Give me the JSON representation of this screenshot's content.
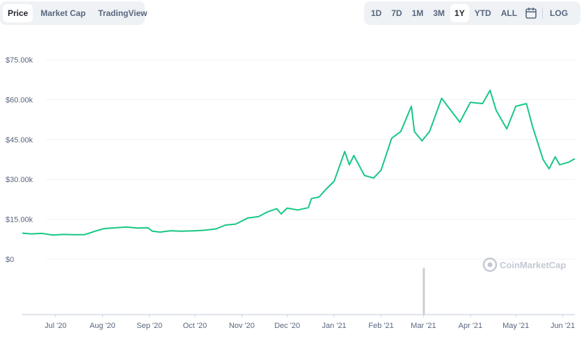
{
  "tabs": [
    {
      "label": "Price",
      "active": true
    },
    {
      "label": "Market Cap",
      "active": false
    },
    {
      "label": "TradingView",
      "active": false
    }
  ],
  "ranges": [
    {
      "label": "1D",
      "active": false
    },
    {
      "label": "7D",
      "active": false
    },
    {
      "label": "1M",
      "active": false
    },
    {
      "label": "3M",
      "active": false
    },
    {
      "label": "1Y",
      "active": true
    },
    {
      "label": "YTD",
      "active": false
    },
    {
      "label": "ALL",
      "active": false
    }
  ],
  "calendar_icon": "calendar-icon",
  "log_label": "LOG",
  "watermark": "CoinMarketCap",
  "colors": {
    "line": "#16c784",
    "grid": "#eff2f5",
    "volume": "#c9cdd4",
    "tab_bg": "#eff2f5"
  },
  "chart_data": {
    "type": "line",
    "ylim": [
      0,
      75000
    ],
    "yticks": [
      {
        "value": 0,
        "label": "$0"
      },
      {
        "value": 15000,
        "label": "$15.00k"
      },
      {
        "value": 30000,
        "label": "$30.00k"
      },
      {
        "value": 45000,
        "label": "$45.00k"
      },
      {
        "value": 60000,
        "label": "$60.00k"
      },
      {
        "value": 75000,
        "label": "$75.00k"
      }
    ],
    "xlim": [
      "2020-06-09",
      "2021-06-09"
    ],
    "xticks": [
      {
        "date": "2020-07-01",
        "label": "Jul '20"
      },
      {
        "date": "2020-08-01",
        "label": "Aug '20"
      },
      {
        "date": "2020-09-01",
        "label": "Sep '20"
      },
      {
        "date": "2020-10-01",
        "label": "Oct '20"
      },
      {
        "date": "2020-11-01",
        "label": "Nov '20"
      },
      {
        "date": "2020-12-01",
        "label": "Dec '20"
      },
      {
        "date": "2021-01-01",
        "label": "Jan '21"
      },
      {
        "date": "2021-02-01",
        "label": "Feb '21"
      },
      {
        "date": "2021-03-01",
        "label": "Mar '21"
      },
      {
        "date": "2021-04-01",
        "label": "Apr '21"
      },
      {
        "date": "2021-05-01",
        "label": "May '21"
      },
      {
        "date": "2021-06-01",
        "label": "Jun '21"
      }
    ],
    "series": [
      {
        "points": [
          [
            "2020-06-09",
            9800
          ],
          [
            "2020-06-15",
            9500
          ],
          [
            "2020-06-22",
            9700
          ],
          [
            "2020-06-29",
            9100
          ],
          [
            "2020-07-06",
            9300
          ],
          [
            "2020-07-13",
            9200
          ],
          [
            "2020-07-20",
            9200
          ],
          [
            "2020-07-27",
            10500
          ],
          [
            "2020-08-02",
            11500
          ],
          [
            "2020-08-10",
            11800
          ],
          [
            "2020-08-17",
            12100
          ],
          [
            "2020-08-24",
            11700
          ],
          [
            "2020-08-31",
            11800
          ],
          [
            "2020-09-03",
            10500
          ],
          [
            "2020-09-08",
            10200
          ],
          [
            "2020-09-15",
            10700
          ],
          [
            "2020-09-22",
            10500
          ],
          [
            "2020-10-01",
            10700
          ],
          [
            "2020-10-08",
            10900
          ],
          [
            "2020-10-15",
            11400
          ],
          [
            "2020-10-21",
            12800
          ],
          [
            "2020-10-28",
            13200
          ],
          [
            "2020-11-05",
            15500
          ],
          [
            "2020-11-12",
            16000
          ],
          [
            "2020-11-18",
            17800
          ],
          [
            "2020-11-24",
            19000
          ],
          [
            "2020-11-27",
            17000
          ],
          [
            "2020-12-01",
            19200
          ],
          [
            "2020-12-08",
            18500
          ],
          [
            "2020-12-15",
            19400
          ],
          [
            "2020-12-17",
            22800
          ],
          [
            "2020-12-22",
            23400
          ],
          [
            "2020-12-27",
            26500
          ],
          [
            "2021-01-01",
            29300
          ],
          [
            "2021-01-03",
            32500
          ],
          [
            "2021-01-08",
            40500
          ],
          [
            "2021-01-11",
            35500
          ],
          [
            "2021-01-14",
            39000
          ],
          [
            "2021-01-21",
            31500
          ],
          [
            "2021-01-27",
            30500
          ],
          [
            "2021-02-01",
            33500
          ],
          [
            "2021-02-08",
            45500
          ],
          [
            "2021-02-14",
            48000
          ],
          [
            "2021-02-21",
            57500
          ],
          [
            "2021-02-23",
            48000
          ],
          [
            "2021-02-28",
            44500
          ],
          [
            "2021-03-05",
            48000
          ],
          [
            "2021-03-13",
            60500
          ],
          [
            "2021-03-17",
            57500
          ],
          [
            "2021-03-25",
            51500
          ],
          [
            "2021-04-01",
            59000
          ],
          [
            "2021-04-09",
            58500
          ],
          [
            "2021-04-14",
            63500
          ],
          [
            "2021-04-18",
            56000
          ],
          [
            "2021-04-25",
            49000
          ],
          [
            "2021-05-01",
            57500
          ],
          [
            "2021-05-08",
            58500
          ],
          [
            "2021-05-12",
            50000
          ],
          [
            "2021-05-19",
            37500
          ],
          [
            "2021-05-23",
            34000
          ],
          [
            "2021-05-27",
            38500
          ],
          [
            "2021-05-30",
            35500
          ],
          [
            "2021-06-05",
            36500
          ],
          [
            "2021-06-09",
            37800
          ]
        ]
      }
    ],
    "volume": {
      "spike_date": "2021-03-01",
      "spike_fraction": 0.95,
      "baseline_fraction": 0.02
    }
  }
}
